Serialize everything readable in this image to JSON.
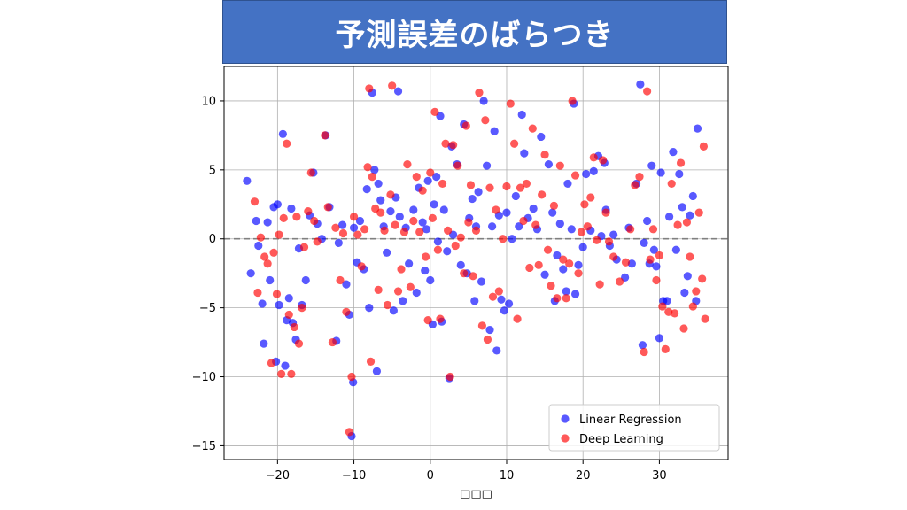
{
  "title": "予測誤差のばらつき",
  "colors": {
    "banner": "#4472c4",
    "series_linear": "#0000ff",
    "series_deep": "#ff0000",
    "zero_line": "#808080",
    "grid": "#b0b0b0"
  },
  "chart_data": {
    "type": "scatter",
    "xlabel": "□□□",
    "ylabel": "",
    "xlim": [
      -27,
      39
    ],
    "ylim": [
      -16,
      12.5
    ],
    "xticks": [
      -20,
      -10,
      0,
      10,
      20,
      30
    ],
    "yticks": [
      -15,
      -10,
      -5,
      0,
      5,
      10
    ],
    "grid": true,
    "reference_line": {
      "y": 0,
      "style": "dashed"
    },
    "legend": {
      "placement": "lower-right"
    },
    "series": [
      {
        "name": "Linear Regression",
        "color": "#0000ff",
        "points": [
          [
            -24,
            4.2
          ],
          [
            -23.5,
            -2.5
          ],
          [
            -22.8,
            1.3
          ],
          [
            -22.5,
            -0.5
          ],
          [
            -22,
            -4.7
          ],
          [
            -21.8,
            -7.6
          ],
          [
            -21.3,
            1.2
          ],
          [
            -21,
            -3
          ],
          [
            -20.5,
            2.3
          ],
          [
            -20.2,
            -8.9
          ],
          [
            -20,
            2.5
          ],
          [
            -19.8,
            -4.8
          ],
          [
            -19.3,
            7.6
          ],
          [
            -19,
            -9.2
          ],
          [
            -18.8,
            -5.9
          ],
          [
            -18.5,
            -4.3
          ],
          [
            -18.2,
            2.2
          ],
          [
            -18,
            -6.1
          ],
          [
            -17.6,
            -7.3
          ],
          [
            -17.2,
            -0.7
          ],
          [
            -16.8,
            -4.8
          ],
          [
            -16.3,
            -3
          ],
          [
            -15.8,
            1.7
          ],
          [
            -15.3,
            4.8
          ],
          [
            -14.8,
            1.1
          ],
          [
            -14.2,
            0
          ],
          [
            -13.7,
            7.5
          ],
          [
            -13.2,
            2.3
          ],
          [
            -12.3,
            -7.4
          ],
          [
            -12,
            -0.3
          ],
          [
            -11.5,
            1
          ],
          [
            -11,
            -3.3
          ],
          [
            -10.6,
            -5.5
          ],
          [
            -10.3,
            -14.3
          ],
          [
            -10.1,
            -10.4
          ],
          [
            -10,
            0.8
          ],
          [
            -9.6,
            -1.7
          ],
          [
            -9.2,
            1.3
          ],
          [
            -8.7,
            -2.2
          ],
          [
            -8.3,
            3.6
          ],
          [
            -8,
            -5
          ],
          [
            -7.6,
            10.6
          ],
          [
            -7.3,
            5
          ],
          [
            -7,
            -9.6
          ],
          [
            -6.8,
            4
          ],
          [
            -6.5,
            2.8
          ],
          [
            -6.1,
            0.9
          ],
          [
            -5.7,
            -1
          ],
          [
            -5.2,
            2
          ],
          [
            -4.8,
            -5.2
          ],
          [
            -4.5,
            3
          ],
          [
            -4.2,
            10.7
          ],
          [
            -4,
            1.6
          ],
          [
            -3.6,
            -4.5
          ],
          [
            -3.2,
            0.8
          ],
          [
            -2.8,
            -1.8
          ],
          [
            -2.2,
            2.1
          ],
          [
            -1.8,
            -3.9
          ],
          [
            -1.5,
            3.7
          ],
          [
            -1,
            1.2
          ],
          [
            -0.7,
            -2.3
          ],
          [
            -0.5,
            0.7
          ],
          [
            -0.3,
            4.2
          ],
          [
            0,
            -3
          ],
          [
            0.3,
            -6.2
          ],
          [
            0.5,
            2.5
          ],
          [
            0.8,
            4.5
          ],
          [
            1,
            -0.2
          ],
          [
            1.3,
            8.9
          ],
          [
            1.5,
            -6
          ],
          [
            1.8,
            2.1
          ],
          [
            2.2,
            -0.9
          ],
          [
            2.5,
            -10.1
          ],
          [
            2.8,
            6.7
          ],
          [
            3,
            0.3
          ],
          [
            3.5,
            5.4
          ],
          [
            4,
            -1.9
          ],
          [
            4.4,
            8.3
          ],
          [
            4.8,
            -2.5
          ],
          [
            5.1,
            1.5
          ],
          [
            5.5,
            2.9
          ],
          [
            5.8,
            -4.5
          ],
          [
            6,
            0.9
          ],
          [
            6.3,
            3.4
          ],
          [
            6.7,
            -3.1
          ],
          [
            7,
            10
          ],
          [
            7.4,
            5.3
          ],
          [
            7.8,
            -6.6
          ],
          [
            8.1,
            0.9
          ],
          [
            8.4,
            7.8
          ],
          [
            8.7,
            -8.1
          ],
          [
            9,
            1.7
          ],
          [
            9.3,
            -4.4
          ],
          [
            9.7,
            -5.2
          ],
          [
            10,
            1.9
          ],
          [
            10.3,
            -4.7
          ],
          [
            10.7,
            0
          ],
          [
            11.2,
            3.1
          ],
          [
            11.6,
            0.9
          ],
          [
            12,
            9
          ],
          [
            12.3,
            6.2
          ],
          [
            12.8,
            1.5
          ],
          [
            13.5,
            2.2
          ],
          [
            14,
            0.7
          ],
          [
            14.5,
            7.4
          ],
          [
            15,
            -2.6
          ],
          [
            15.5,
            5.4
          ],
          [
            16,
            1.9
          ],
          [
            16.3,
            -4.5
          ],
          [
            16.6,
            -1.2
          ],
          [
            17,
            1.1
          ],
          [
            17.4,
            -2.2
          ],
          [
            17.8,
            -3.8
          ],
          [
            18,
            4
          ],
          [
            18.5,
            0.7
          ],
          [
            18.8,
            9.8
          ],
          [
            19,
            -4
          ],
          [
            19.4,
            -1.9
          ],
          [
            20,
            -0.6
          ],
          [
            20.4,
            4.7
          ],
          [
            21,
            0.6
          ],
          [
            21.4,
            4.9
          ],
          [
            22,
            6
          ],
          [
            22.4,
            0.2
          ],
          [
            22.8,
            5.5
          ],
          [
            23,
            2.1
          ],
          [
            23.5,
            -0.5
          ],
          [
            24,
            0.3
          ],
          [
            24.4,
            -1.5
          ],
          [
            25.5,
            -2.8
          ],
          [
            26,
            0.8
          ],
          [
            26.4,
            -1.8
          ],
          [
            27,
            4
          ],
          [
            27.5,
            11.2
          ],
          [
            27.8,
            -7.7
          ],
          [
            28,
            -0.3
          ],
          [
            28.4,
            1.3
          ],
          [
            28.7,
            -1.8
          ],
          [
            29,
            5.3
          ],
          [
            29.3,
            -0.8
          ],
          [
            29.6,
            -2
          ],
          [
            30,
            -7.2
          ],
          [
            30.2,
            4.8
          ],
          [
            30.5,
            -4.5
          ],
          [
            31,
            -4.5
          ],
          [
            31.3,
            1.6
          ],
          [
            31.8,
            6.3
          ],
          [
            32.2,
            -0.8
          ],
          [
            32.6,
            4.7
          ],
          [
            33,
            2.3
          ],
          [
            33.3,
            -3.9
          ],
          [
            33.7,
            -2.7
          ],
          [
            34,
            1.7
          ],
          [
            34.4,
            3.1
          ],
          [
            34.8,
            -4.5
          ],
          [
            35,
            8
          ]
        ]
      },
      {
        "name": "Deep Learning",
        "color": "#ff0000",
        "points": [
          [
            -23,
            2.7
          ],
          [
            -22.6,
            -3.9
          ],
          [
            -22.2,
            0.1
          ],
          [
            -21.7,
            -1.3
          ],
          [
            -21.3,
            -1.8
          ],
          [
            -20.8,
            -9
          ],
          [
            -20.5,
            -1
          ],
          [
            -20.1,
            -4
          ],
          [
            -19.8,
            0.3
          ],
          [
            -19.5,
            -9.8
          ],
          [
            -19.2,
            1.5
          ],
          [
            -18.8,
            6.9
          ],
          [
            -18.5,
            -5.5
          ],
          [
            -18.2,
            -9.8
          ],
          [
            -17.8,
            -6.4
          ],
          [
            -17.5,
            1.6
          ],
          [
            -17.2,
            -7.6
          ],
          [
            -16.8,
            -5
          ],
          [
            -16.5,
            -0.6
          ],
          [
            -16,
            2
          ],
          [
            -15.6,
            4.8
          ],
          [
            -15.2,
            1.3
          ],
          [
            -14.8,
            -0.2
          ],
          [
            -13.8,
            7.5
          ],
          [
            -13.4,
            2.3
          ],
          [
            -12.8,
            -7.5
          ],
          [
            -12.4,
            0.8
          ],
          [
            -11.8,
            -3
          ],
          [
            -11.4,
            0.4
          ],
          [
            -11,
            -5.3
          ],
          [
            -10.6,
            -14
          ],
          [
            -10.3,
            -10
          ],
          [
            -10,
            1.6
          ],
          [
            -9.5,
            0.3
          ],
          [
            -9,
            -2
          ],
          [
            -8.6,
            0.7
          ],
          [
            -8.2,
            5.2
          ],
          [
            -8,
            10.9
          ],
          [
            -7.8,
            -8.9
          ],
          [
            -7.6,
            4.5
          ],
          [
            -7.2,
            2.2
          ],
          [
            -6.8,
            -3.7
          ],
          [
            -6.5,
            1.9
          ],
          [
            -6,
            0.6
          ],
          [
            -5.6,
            -4.8
          ],
          [
            -5.2,
            3.2
          ],
          [
            -5,
            11.1
          ],
          [
            -4.6,
            1
          ],
          [
            -4.2,
            -3.8
          ],
          [
            -3.8,
            -2.2
          ],
          [
            -3.4,
            0.5
          ],
          [
            -3,
            5.4
          ],
          [
            -2.6,
            -3.5
          ],
          [
            -2.2,
            1.3
          ],
          [
            -1.8,
            4.5
          ],
          [
            -1.4,
            0.5
          ],
          [
            -1,
            3.5
          ],
          [
            -0.6,
            -1.3
          ],
          [
            -0.3,
            -5.9
          ],
          [
            0,
            4.8
          ],
          [
            0.3,
            1.5
          ],
          [
            0.6,
            9.2
          ],
          [
            1,
            -0.8
          ],
          [
            1.3,
            -5.8
          ],
          [
            1.6,
            4
          ],
          [
            2,
            6.9
          ],
          [
            2.3,
            0.6
          ],
          [
            2.6,
            -10
          ],
          [
            3,
            6.8
          ],
          [
            3.3,
            -0.5
          ],
          [
            3.6,
            5.3
          ],
          [
            4,
            0.1
          ],
          [
            4.4,
            -2.5
          ],
          [
            4.7,
            8.2
          ],
          [
            5,
            1.2
          ],
          [
            5.3,
            3.9
          ],
          [
            5.6,
            -2.7
          ],
          [
            6,
            0.6
          ],
          [
            6.4,
            10.6
          ],
          [
            6.8,
            -6.3
          ],
          [
            7.2,
            8.6
          ],
          [
            7.5,
            -7.3
          ],
          [
            7.8,
            3.7
          ],
          [
            8.2,
            -4.2
          ],
          [
            8.6,
            2.1
          ],
          [
            9,
            -3.8
          ],
          [
            9.5,
            0
          ],
          [
            10,
            3.8
          ],
          [
            10.5,
            9.8
          ],
          [
            11,
            6.9
          ],
          [
            11.4,
            -5.8
          ],
          [
            11.8,
            3.7
          ],
          [
            12.2,
            1.3
          ],
          [
            12.6,
            4
          ],
          [
            13,
            -2.1
          ],
          [
            13.4,
            8
          ],
          [
            13.8,
            1
          ],
          [
            14.2,
            -1.9
          ],
          [
            14.6,
            3.2
          ],
          [
            15,
            6.1
          ],
          [
            15.4,
            -0.8
          ],
          [
            15.8,
            -3.4
          ],
          [
            16.2,
            2.4
          ],
          [
            16.6,
            -4.3
          ],
          [
            17,
            5.3
          ],
          [
            17.4,
            -1.5
          ],
          [
            17.8,
            -4.3
          ],
          [
            18.2,
            -1.8
          ],
          [
            18.6,
            10
          ],
          [
            19,
            4.6
          ],
          [
            19.4,
            -2.5
          ],
          [
            19.8,
            0.5
          ],
          [
            20.2,
            2.5
          ],
          [
            20.6,
            0.9
          ],
          [
            21,
            3
          ],
          [
            21.4,
            5.9
          ],
          [
            21.8,
            -0.1
          ],
          [
            22.2,
            -3.3
          ],
          [
            22.6,
            5.7
          ],
          [
            23,
            1.9
          ],
          [
            23.4,
            -0.2
          ],
          [
            24,
            -1.3
          ],
          [
            24.8,
            -3.1
          ],
          [
            25.6,
            -1.7
          ],
          [
            26.2,
            0.7
          ],
          [
            26.8,
            3.9
          ],
          [
            27.4,
            4.5
          ],
          [
            28,
            -8.2
          ],
          [
            28.4,
            10.7
          ],
          [
            28.8,
            -1.5
          ],
          [
            29.2,
            0.7
          ],
          [
            29.6,
            -3
          ],
          [
            30,
            -1.2
          ],
          [
            30.4,
            -4.9
          ],
          [
            30.8,
            -8
          ],
          [
            31.2,
            -5.3
          ],
          [
            31.6,
            4
          ],
          [
            32,
            -5.4
          ],
          [
            32.4,
            1
          ],
          [
            32.8,
            5.5
          ],
          [
            33.2,
            -6.5
          ],
          [
            33.6,
            1.2
          ],
          [
            34,
            -1.3
          ],
          [
            34.4,
            -4.9
          ],
          [
            34.8,
            -3.8
          ],
          [
            35.2,
            1.9
          ],
          [
            35.6,
            -2.9
          ],
          [
            35.8,
            6.7
          ],
          [
            36,
            -5.8
          ]
        ]
      }
    ]
  }
}
